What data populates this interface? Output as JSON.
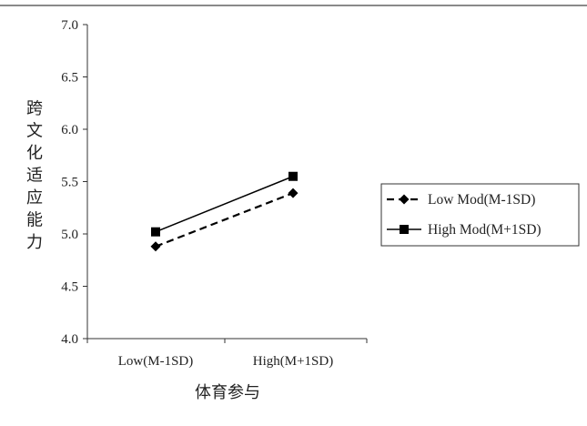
{
  "chart_data": {
    "type": "line",
    "categories": [
      "Low(M-1SD)",
      "High(M+1SD)"
    ],
    "series": [
      {
        "name": "Low Mod(M-1SD)",
        "values": [
          4.88,
          5.39
        ],
        "line_style": "dashed",
        "marker": "diamond",
        "color": "#000000"
      },
      {
        "name": "High Mod(M+1SD)",
        "values": [
          5.02,
          5.55
        ],
        "line_style": "solid",
        "marker": "square",
        "color": "#000000"
      }
    ],
    "xlabel": "体育参与",
    "ylabel": "跨文化适应能力",
    "ylim": [
      4.0,
      7.0
    ],
    "yticks": [
      "4.0",
      "4.5",
      "5.0",
      "5.5",
      "6.0",
      "6.5",
      "7.0"
    ],
    "grid": false,
    "legend_position": "right"
  }
}
